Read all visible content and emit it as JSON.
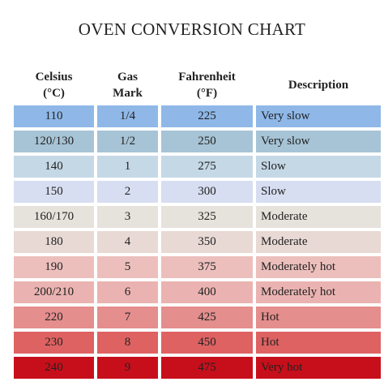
{
  "title": "OVEN CONVERSION CHART",
  "headers": {
    "celsius": [
      "Celsius",
      "(°C)"
    ],
    "gas": [
      "Gas",
      "Mark"
    ],
    "fahrenheit": [
      "Fahrenheit",
      "(°F)"
    ],
    "description": "Description"
  },
  "rows": [
    {
      "celsius": "110",
      "gas": "1/4",
      "fahrenheit": "225",
      "description": "Very slow",
      "color": "#8fb8e8",
      "text_color": "#222222"
    },
    {
      "celsius": "120/130",
      "gas": "1/2",
      "fahrenheit": "250",
      "description": "Very slow",
      "color": "#a7c4d6",
      "text_color": "#222222"
    },
    {
      "celsius": "140",
      "gas": "1",
      "fahrenheit": "275",
      "description": "Slow",
      "color": "#c5d8e6",
      "text_color": "#222222"
    },
    {
      "celsius": "150",
      "gas": "2",
      "fahrenheit": "300",
      "description": "Slow",
      "color": "#d7def1",
      "text_color": "#222222"
    },
    {
      "celsius": "160/170",
      "gas": "3",
      "fahrenheit": "325",
      "description": "Moderate",
      "color": "#e6e2dc",
      "text_color": "#222222"
    },
    {
      "celsius": "180",
      "gas": "4",
      "fahrenheit": "350",
      "description": "Moderate",
      "color": "#e8d9d5",
      "text_color": "#222222"
    },
    {
      "celsius": "190",
      "gas": "5",
      "fahrenheit": "375",
      "description": "Moderately hot",
      "color": "#ecbfbc",
      "text_color": "#222222"
    },
    {
      "celsius": "200/210",
      "gas": "6",
      "fahrenheit": "400",
      "description": "Moderately hot",
      "color": "#eab3b1",
      "text_color": "#222222"
    },
    {
      "celsius": "220",
      "gas": "7",
      "fahrenheit": "425",
      "description": "Hot",
      "color": "#e48e8d",
      "text_color": "#222222"
    },
    {
      "celsius": "230",
      "gas": "8",
      "fahrenheit": "450",
      "description": "Hot",
      "color": "#de6262",
      "text_color": "#222222"
    },
    {
      "celsius": "240",
      "gas": "9",
      "fahrenheit": "475",
      "description": "Very hot",
      "color": "#c70f1b",
      "text_color": "#222222"
    }
  ]
}
